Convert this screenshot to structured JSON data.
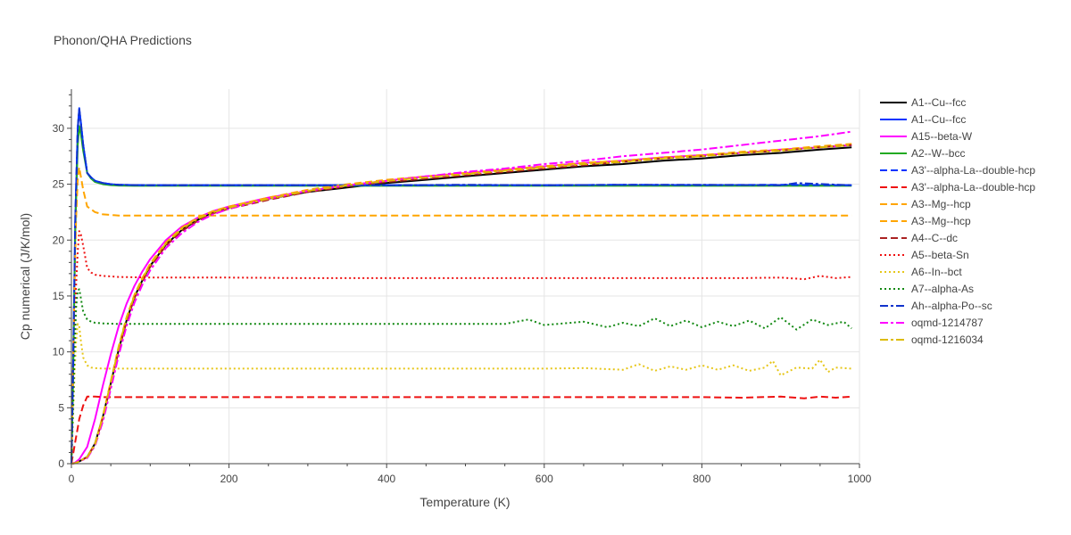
{
  "chart_data": {
    "type": "line",
    "title": "Phonon/QHA Predictions",
    "xlabel": "Temperature (K)",
    "ylabel": "Cp numerical (J/K/mol)",
    "xlim": [
      0,
      1000
    ],
    "ylim": [
      0,
      33.5
    ],
    "xticks": [
      0,
      200,
      400,
      600,
      800,
      1000
    ],
    "yticks": [
      0,
      5,
      10,
      15,
      20,
      25,
      30
    ],
    "grid": true,
    "legend_position": "right",
    "series": [
      {
        "name": "A1--Cu--fcc",
        "color": "#000000",
        "dash": "solid",
        "width": 2,
        "x": [
          0,
          5,
          10,
          20,
          30,
          40,
          50,
          60,
          70,
          80,
          90,
          100,
          120,
          140,
          160,
          180,
          200,
          250,
          300,
          350,
          400,
          450,
          500,
          550,
          600,
          650,
          700,
          750,
          800,
          850,
          900,
          950,
          990
        ],
        "y": [
          0,
          0.05,
          0.2,
          0.6,
          1.8,
          4.2,
          7.2,
          10.2,
          12.8,
          14.9,
          16.4,
          17.7,
          19.6,
          20.9,
          21.8,
          22.5,
          22.9,
          23.7,
          24.3,
          24.7,
          25.1,
          25.4,
          25.7,
          26.0,
          26.3,
          26.6,
          26.8,
          27.1,
          27.3,
          27.6,
          27.8,
          28.1,
          28.3
        ]
      },
      {
        "name": "A1--Cu--fcc",
        "color": "#0033ff",
        "dash": "solid",
        "width": 2,
        "x": [
          0,
          2,
          5,
          8,
          10,
          12,
          15,
          20,
          25,
          30,
          40,
          50,
          60,
          80,
          100,
          150,
          200,
          300,
          400,
          500,
          600,
          700,
          800,
          900,
          990
        ],
        "y": [
          0,
          8,
          22,
          30,
          31.8,
          30.5,
          28.5,
          26,
          25.6,
          25.3,
          25.1,
          25.0,
          24.95,
          24.92,
          24.9,
          24.9,
          24.9,
          24.9,
          24.9,
          24.9,
          24.9,
          24.9,
          24.92,
          24.92,
          24.9
        ]
      },
      {
        "name": "A15--beta-W",
        "color": "#ff00ff",
        "dash": "solid",
        "width": 2,
        "x": [
          0,
          5,
          10,
          20,
          30,
          40,
          50,
          60,
          70,
          80,
          90,
          100,
          120,
          140,
          160,
          180,
          200,
          250,
          300,
          350,
          400,
          450,
          500,
          550,
          600,
          650,
          700,
          750,
          800,
          850,
          900,
          950,
          990
        ],
        "y": [
          0,
          0.1,
          0.4,
          1.5,
          4.0,
          7.0,
          9.8,
          12.3,
          14.3,
          15.9,
          17.2,
          18.3,
          20.0,
          21.2,
          22.0,
          22.6,
          23.0,
          23.8,
          24.4,
          24.9,
          25.3,
          25.7,
          26.0,
          26.3,
          26.6,
          26.9,
          27.1,
          27.4,
          27.6,
          27.8,
          28.1,
          28.3,
          28.5
        ]
      },
      {
        "name": "A2--W--bcc",
        "color": "#22aa22",
        "dash": "solid",
        "width": 2,
        "x": [
          0,
          2,
          5,
          8,
          10,
          12,
          15,
          20,
          25,
          30,
          40,
          50,
          60,
          80,
          100,
          150,
          200,
          300,
          400,
          500,
          600,
          700,
          800,
          900,
          990
        ],
        "y": [
          0,
          7,
          21,
          28.5,
          30.2,
          29.5,
          28.0,
          26.0,
          25.5,
          25.2,
          25.0,
          24.92,
          24.88,
          24.85,
          24.85,
          24.85,
          24.85,
          24.85,
          24.85,
          24.85,
          24.85,
          24.85,
          24.85,
          24.85,
          24.85
        ]
      },
      {
        "name": "A3'--alpha-La--double-hcp",
        "color": "#0033ff",
        "dash": "dash",
        "width": 2,
        "x": [
          0,
          2,
          5,
          8,
          10,
          12,
          15,
          20,
          25,
          30,
          40,
          50,
          60,
          80,
          100,
          150,
          200,
          300,
          400,
          500,
          600,
          700,
          800,
          900,
          990
        ],
        "y": [
          0,
          8,
          22,
          30,
          31.6,
          30.5,
          28.5,
          26.0,
          25.6,
          25.3,
          25.1,
          25.0,
          24.95,
          24.92,
          24.9,
          24.9,
          24.9,
          24.9,
          24.9,
          24.9,
          24.9,
          24.95,
          24.92,
          24.95,
          24.9
        ]
      },
      {
        "name": "A3'--alpha-La--double-hcp",
        "color": "#ee1111",
        "dash": "dash",
        "width": 2,
        "x": [
          0,
          2,
          5,
          8,
          10,
          15,
          20,
          30,
          40,
          60,
          100,
          200,
          300,
          400,
          500,
          600,
          700,
          800,
          850,
          900,
          930,
          950,
          970,
          990
        ],
        "y": [
          0,
          0.8,
          2.0,
          3.2,
          4.0,
          5.2,
          6.0,
          6.0,
          5.95,
          5.95,
          5.95,
          5.95,
          5.95,
          5.95,
          5.95,
          5.95,
          5.95,
          5.95,
          5.9,
          6.0,
          5.85,
          6.0,
          5.9,
          6.0
        ]
      },
      {
        "name": "A3--Mg--hcp",
        "color": "#ffa500",
        "dash": "dash",
        "width": 2,
        "x": [
          0,
          2,
          4,
          6,
          8,
          10,
          15,
          20,
          30,
          40,
          60,
          100,
          200,
          300,
          400,
          500,
          600,
          700,
          800,
          900,
          990
        ],
        "y": [
          0,
          8,
          16,
          22,
          25.5,
          26.5,
          24.5,
          23.0,
          22.5,
          22.3,
          22.2,
          22.2,
          22.2,
          22.2,
          22.2,
          22.2,
          22.2,
          22.2,
          22.2,
          22.2,
          22.2
        ]
      },
      {
        "name": "A3--Mg--hcp",
        "color": "#ffa500",
        "dash": "dash",
        "width": 2,
        "x": [
          0,
          5,
          10,
          20,
          30,
          40,
          50,
          60,
          70,
          80,
          90,
          100,
          120,
          140,
          160,
          180,
          200,
          250,
          300,
          350,
          400,
          450,
          500,
          550,
          600,
          650,
          700,
          750,
          800,
          850,
          900,
          950,
          990
        ],
        "y": [
          0,
          0.05,
          0.2,
          0.6,
          1.8,
          4.3,
          7.4,
          10.5,
          13.1,
          15.1,
          16.6,
          17.9,
          19.8,
          21.1,
          22.0,
          22.6,
          23.0,
          23.8,
          24.5,
          25.0,
          25.4,
          25.7,
          26.0,
          26.3,
          26.6,
          26.9,
          27.1,
          27.4,
          27.6,
          27.9,
          28.1,
          28.4,
          28.6
        ]
      },
      {
        "name": "A4--C--dc",
        "color": "#aa2222",
        "dash": "dash",
        "width": 2,
        "x": [
          0,
          5,
          10,
          20,
          30,
          40,
          50,
          60,
          70,
          80,
          90,
          100,
          120,
          140,
          160,
          180,
          200,
          250,
          300,
          350,
          400,
          450,
          500,
          550,
          600,
          650,
          700,
          750,
          800,
          850,
          900,
          950,
          990
        ],
        "y": [
          0,
          0.05,
          0.2,
          0.6,
          1.7,
          4.1,
          7.1,
          10.1,
          12.7,
          14.8,
          16.3,
          17.6,
          19.5,
          20.8,
          21.7,
          22.4,
          22.8,
          23.6,
          24.3,
          24.8,
          25.2,
          25.5,
          25.8,
          26.1,
          26.4,
          26.7,
          27.0,
          27.3,
          27.5,
          27.8,
          28.0,
          28.3,
          28.5
        ]
      },
      {
        "name": "A5--beta-Sn",
        "color": "#ee1111",
        "dash": "dot",
        "width": 2,
        "x": [
          0,
          2,
          4,
          6,
          8,
          10,
          12,
          15,
          20,
          25,
          30,
          40,
          60,
          100,
          200,
          300,
          400,
          500,
          600,
          700,
          800,
          850,
          900,
          930,
          950,
          970,
          990
        ],
        "y": [
          0,
          6,
          12,
          16,
          19,
          20.8,
          20.5,
          19.5,
          17.5,
          17.1,
          16.9,
          16.8,
          16.7,
          16.65,
          16.65,
          16.6,
          16.6,
          16.6,
          16.6,
          16.6,
          16.6,
          16.6,
          16.65,
          16.5,
          16.8,
          16.6,
          16.7
        ]
      },
      {
        "name": "A6--In--bct",
        "color": "#e6c619",
        "dash": "dot",
        "width": 2,
        "x": [
          0,
          2,
          4,
          6,
          8,
          10,
          12,
          15,
          20,
          25,
          30,
          40,
          60,
          100,
          200,
          300,
          400,
          500,
          600,
          650,
          700,
          720,
          740,
          760,
          780,
          800,
          820,
          840,
          860,
          880,
          890,
          900,
          920,
          940,
          950,
          960,
          970,
          990
        ],
        "y": [
          0,
          4,
          8,
          11,
          12.5,
          12.3,
          11.0,
          9.5,
          8.8,
          8.6,
          8.55,
          8.5,
          8.5,
          8.5,
          8.5,
          8.5,
          8.5,
          8.5,
          8.5,
          8.55,
          8.4,
          8.9,
          8.3,
          8.7,
          8.4,
          8.8,
          8.4,
          8.8,
          8.3,
          8.6,
          9.2,
          7.9,
          8.6,
          8.5,
          9.3,
          8.2,
          8.6,
          8.5
        ]
      },
      {
        "name": "A7--alpha-As",
        "color": "#118811",
        "dash": "dot",
        "width": 2,
        "x": [
          0,
          2,
          4,
          6,
          8,
          10,
          12,
          15,
          20,
          25,
          30,
          40,
          60,
          100,
          200,
          300,
          400,
          500,
          550,
          580,
          600,
          650,
          680,
          700,
          720,
          740,
          760,
          780,
          800,
          820,
          840,
          860,
          880,
          900,
          920,
          940,
          960,
          980,
          990
        ],
        "y": [
          0,
          5,
          10,
          14,
          15.5,
          15.6,
          14.8,
          13.6,
          12.9,
          12.7,
          12.6,
          12.55,
          12.5,
          12.5,
          12.5,
          12.5,
          12.5,
          12.5,
          12.5,
          12.9,
          12.4,
          12.7,
          12.2,
          12.6,
          12.3,
          13.0,
          12.3,
          12.8,
          12.2,
          12.7,
          12.3,
          12.8,
          12.1,
          13.1,
          12.0,
          12.9,
          12.4,
          12.7,
          12.1
        ]
      },
      {
        "name": "Ah--alpha-Po--sc",
        "color": "#1133cc",
        "dash": "dashdot",
        "width": 2,
        "x": [
          0,
          2,
          5,
          8,
          10,
          12,
          15,
          20,
          25,
          30,
          40,
          50,
          60,
          80,
          100,
          150,
          200,
          300,
          400,
          500,
          600,
          700,
          800,
          900,
          920,
          990
        ],
        "y": [
          0,
          8,
          22,
          30,
          31.7,
          30.5,
          28.5,
          26.0,
          25.6,
          25.3,
          25.1,
          25.0,
          24.95,
          24.92,
          24.9,
          24.9,
          24.9,
          24.9,
          24.9,
          24.95,
          24.9,
          24.95,
          24.95,
          24.9,
          25.1,
          24.9
        ]
      },
      {
        "name": "oqmd-1214787",
        "color": "#ff00ff",
        "dash": "dashdot",
        "width": 2,
        "x": [
          0,
          5,
          10,
          20,
          30,
          40,
          50,
          60,
          70,
          80,
          90,
          100,
          120,
          140,
          160,
          180,
          200,
          250,
          300,
          350,
          400,
          450,
          500,
          550,
          600,
          650,
          700,
          750,
          800,
          850,
          900,
          950,
          990
        ],
        "y": [
          0,
          0.05,
          0.2,
          0.5,
          1.6,
          3.8,
          6.7,
          9.7,
          12.3,
          14.4,
          16.0,
          17.3,
          19.3,
          20.6,
          21.6,
          22.3,
          22.8,
          23.7,
          24.4,
          24.9,
          25.3,
          25.7,
          26.1,
          26.4,
          26.8,
          27.1,
          27.5,
          27.8,
          28.1,
          28.5,
          28.9,
          29.3,
          29.7
        ]
      },
      {
        "name": "oqmd-1216034",
        "color": "#ddbb00",
        "dash": "dashdot",
        "width": 2,
        "x": [
          0,
          5,
          10,
          20,
          30,
          40,
          50,
          60,
          70,
          80,
          90,
          100,
          120,
          140,
          160,
          180,
          200,
          250,
          300,
          350,
          400,
          450,
          500,
          550,
          600,
          650,
          700,
          750,
          800,
          850,
          900,
          950,
          990
        ],
        "y": [
          0,
          0.05,
          0.2,
          0.6,
          1.7,
          4.2,
          7.3,
          10.4,
          13.0,
          15.0,
          16.5,
          17.8,
          19.7,
          21.0,
          21.9,
          22.5,
          22.9,
          23.7,
          24.4,
          24.9,
          25.3,
          25.6,
          25.9,
          26.2,
          26.5,
          26.8,
          27.0,
          27.3,
          27.5,
          27.8,
          28.0,
          28.3,
          28.5
        ]
      }
    ]
  }
}
